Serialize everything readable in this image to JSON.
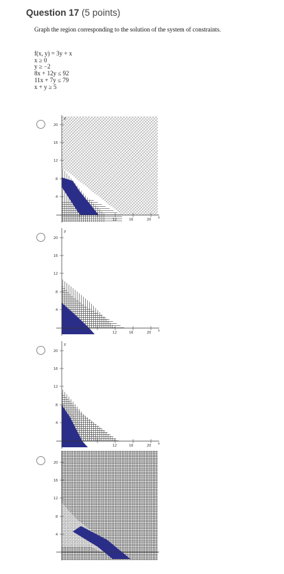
{
  "question": {
    "title": "Question 17",
    "points": "(5 points)",
    "prompt": "Graph the region corresponding to the solution of the system of constraints."
  },
  "constraints": [
    "f(x, y) = 3y + x",
    "x ≥ 0",
    "y ≥ −2",
    "8x + 12y ≤ 92",
    "11x + 7y ≤ 79",
    "x + y ≥ 5"
  ],
  "graph_labels": {
    "x_axis_letter": "x",
    "y_axis_letter": "y",
    "y_ticks": [
      "20",
      "16",
      "12",
      "8",
      "4"
    ],
    "x_ticks": [
      "12",
      "16",
      "20"
    ]
  },
  "colors": {
    "feasible_fill": "#2b2e88",
    "hatch": "#555555",
    "radio_border": "#888888"
  },
  "options": [
    {
      "id": "A",
      "selected": false
    },
    {
      "id": "B",
      "selected": false
    },
    {
      "id": "C",
      "selected": false
    },
    {
      "id": "D",
      "selected": false
    }
  ]
}
